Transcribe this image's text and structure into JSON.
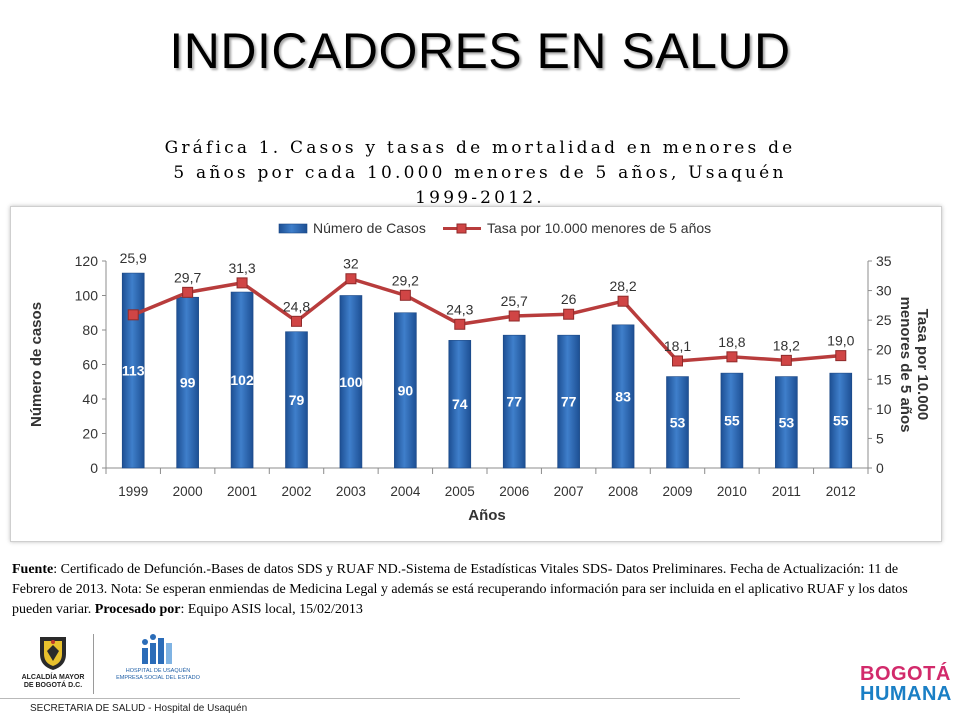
{
  "slide": {
    "title": "INDICADORES EN SALUD"
  },
  "chart_data": {
    "type": "bar",
    "title_lines": [
      "Gráfica 1. Casos y tasas de mortalidad en menores de",
      "5 años por cada 10.000 menores de 5 años, Usaquén",
      "1999-2012."
    ],
    "categories": [
      "1999",
      "2000",
      "2001",
      "2002",
      "2003",
      "2004",
      "2005",
      "2006",
      "2007",
      "2008",
      "2009",
      "2010",
      "2011",
      "2012"
    ],
    "series": [
      {
        "name": "Número de Casos",
        "type": "bar",
        "axis": "left",
        "color": "#2e6ab7",
        "values": [
          113,
          99,
          102,
          79,
          100,
          90,
          74,
          77,
          77,
          83,
          53,
          55,
          53,
          55
        ],
        "labels": [
          "113",
          "99",
          "102",
          "79",
          "100",
          "90",
          "74",
          "77",
          "77",
          "83",
          "53",
          "55",
          "53",
          "55"
        ]
      },
      {
        "name": "Tasa por 10.000 menores de 5 años",
        "type": "line",
        "axis": "right",
        "color": "#b83c3c",
        "values": [
          25.9,
          29.7,
          31.3,
          24.8,
          32,
          29.2,
          24.3,
          25.7,
          26,
          28.2,
          18.1,
          18.8,
          18.2,
          19.0
        ],
        "labels": [
          "25,9",
          "29,7",
          "31,3",
          "24,8",
          "32",
          "29,2",
          "24,3",
          "25,7",
          "26",
          "28,2",
          "18,1",
          "18,8",
          "18,2",
          "19,0"
        ]
      }
    ],
    "xlabel": "Años",
    "ylabel": "Número de casos",
    "y2label_lines": [
      "Tasa por 10.000",
      "menores de 5 años"
    ],
    "ylim": [
      0,
      120
    ],
    "yticks": [
      "0",
      "20",
      "40",
      "60",
      "80",
      "100",
      "120"
    ],
    "y2lim": [
      0,
      35
    ],
    "y2ticks": [
      "0",
      "5",
      "10",
      "15",
      "20",
      "25",
      "30",
      "35"
    ],
    "grid": false,
    "legend_position": "top"
  },
  "source_note": {
    "source_label": "Fuente",
    "source_text": ": Certificado de Defunción.-Bases de datos SDS y RUAF ND.-Sistema de Estadísticas Vitales SDS- Datos Preliminares. Fecha de Actualización: 11 de Febrero de 2013. Nota: Se esperan enmiendas de Medicina Legal y además se está recuperando información para ser incluida en el aplicativo RUAF y los datos pueden variar. ",
    "processed_label": "Procesado por",
    "processed_text": ": Equipo ASIS local, 15/02/2013"
  },
  "logos": {
    "alcaldia_lines": [
      "ALCALDÍA MAYOR",
      "DE BOGOTÁ D.C."
    ],
    "hospital_lines": [
      "HOSPITAL DE USAQUÉN",
      "EMPRESA SOCIAL DEL ESTADO"
    ],
    "bogota_top": "BOGOTÁ",
    "bogota_bottom": "HUMANA"
  },
  "footer": {
    "text": "SECRETARIA DE SALUD - Hospital de Usaquén"
  }
}
